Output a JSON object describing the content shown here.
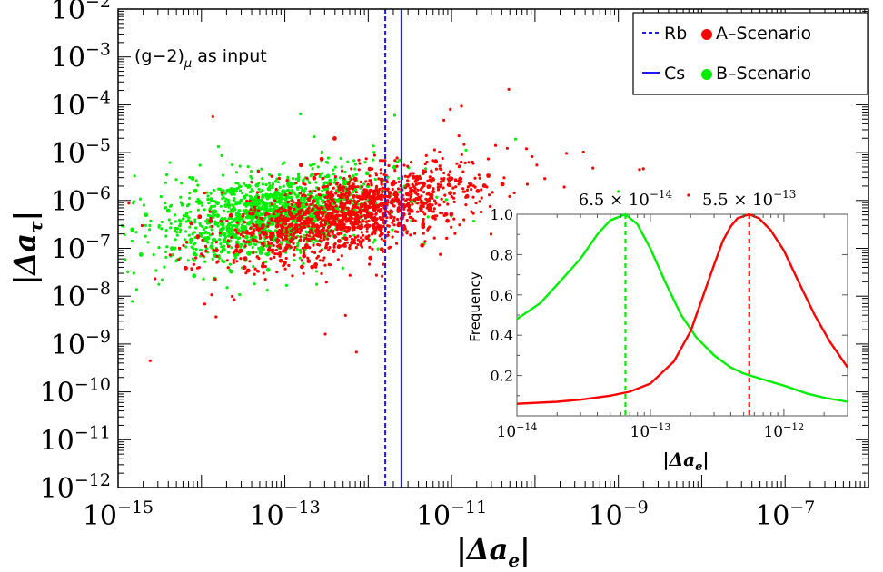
{
  "colors": {
    "a_scenario": "#ff0000",
    "b_scenario": "#00ee00",
    "rb_line": "#1a1aff",
    "cs_line": "#1a1aff",
    "axes": "#000000"
  },
  "chart_data": [
    {
      "type": "scatter",
      "x_scale": "log",
      "y_scale": "log",
      "xlabel": "|Δa_e|",
      "ylabel": "|Δa_τ|",
      "xlim": [
        1e-15,
        1e-06
      ],
      "ylim": [
        1e-12,
        0.01
      ],
      "x_ticks": [
        {
          "base": "10",
          "exp": "−15",
          "value": 1e-15
        },
        {
          "base": "10",
          "exp": "−13",
          "value": 1e-13
        },
        {
          "base": "10",
          "exp": "−11",
          "value": 1e-11
        },
        {
          "base": "10",
          "exp": "−9",
          "value": 1e-09
        },
        {
          "base": "10",
          "exp": "−7",
          "value": 1e-07
        }
      ],
      "y_ticks": [
        {
          "base": "10",
          "exp": "−12",
          "value": 1e-12
        },
        {
          "base": "10",
          "exp": "−11",
          "value": 1e-11
        },
        {
          "base": "10",
          "exp": "−10",
          "value": 1e-10
        },
        {
          "base": "10",
          "exp": "−9",
          "value": 1e-09
        },
        {
          "base": "10",
          "exp": "−8",
          "value": 1e-08
        },
        {
          "base": "10",
          "exp": "−7",
          "value": 1e-07
        },
        {
          "base": "10",
          "exp": "−6",
          "value": 1e-06
        },
        {
          "base": "10",
          "exp": "−5",
          "value": 1e-05
        },
        {
          "base": "10",
          "exp": "−4",
          "value": 0.0001
        },
        {
          "base": "10",
          "exp": "−3",
          "value": 0.001
        },
        {
          "base": "10",
          "exp": "−2",
          "value": 0.01
        }
      ],
      "annotation": {
        "text": "(g−2)",
        "sub": "μ",
        "rest": " as input"
      },
      "legend": {
        "placement": "top-right",
        "items": [
          {
            "label": "Rb",
            "marker": "dashed-line"
          },
          {
            "label": "A–Scenario",
            "marker": "dot"
          },
          {
            "label": "Cs",
            "marker": "solid-line"
          },
          {
            "label": "B–Scenario",
            "marker": "dot"
          }
        ]
      },
      "vertical_lines": [
        {
          "name": "Rb",
          "x": 1.6e-12,
          "style": "dashed"
        },
        {
          "name": "Cs",
          "x": 2.5e-12,
          "style": "solid"
        }
      ],
      "series": [
        {
          "name": "A–Scenario",
          "cluster": {
            "center_x": 5.5e-13,
            "center_y": 5e-07
          }
        },
        {
          "name": "B–Scenario",
          "cluster": {
            "center_x": 6.5e-14,
            "center_y": 5e-07
          }
        }
      ]
    },
    {
      "type": "line",
      "x_scale": "log",
      "xlim": [
        1e-14,
        3e-12
      ],
      "ylim": [
        0,
        1
      ],
      "ylabel": "Frequency",
      "xlabel": "|Δa_e|",
      "x_ticks": [
        {
          "base": "10",
          "exp": "−14",
          "value": 1e-14
        },
        {
          "base": "10",
          "exp": "−13",
          "value": 1e-13
        },
        {
          "base": "10",
          "exp": "−12",
          "value": 1e-12
        }
      ],
      "y_ticks": [
        "0.2",
        "0.4",
        "0.6",
        "0.8",
        "1.0"
      ],
      "peak_labels": [
        {
          "text": "6.5 × 10",
          "exp": "−14",
          "x": 6.5e-14
        },
        {
          "text": "5.5 × 10",
          "exp": "−13",
          "x": 5.5e-13
        }
      ],
      "series": [
        {
          "name": "B–Scenario",
          "peak_x": 6.5e-14,
          "x": [
            1e-14,
            1.5e-14,
            2e-14,
            3e-14,
            4e-14,
            5e-14,
            6.5e-14,
            8e-14,
            1e-13,
            1.3e-13,
            1.7e-13,
            2.2e-13,
            3e-13,
            4e-13,
            5e-13,
            7e-13,
            1e-12,
            1.5e-12,
            2e-12,
            3e-12
          ],
          "values": [
            0.48,
            0.56,
            0.65,
            0.78,
            0.9,
            0.97,
            1.0,
            0.95,
            0.83,
            0.66,
            0.5,
            0.39,
            0.3,
            0.24,
            0.21,
            0.18,
            0.15,
            0.11,
            0.09,
            0.07
          ]
        },
        {
          "name": "A–Scenario",
          "peak_x": 5.5e-13,
          "x": [
            1e-14,
            2e-14,
            3e-14,
            5e-14,
            7e-14,
            1e-13,
            1.5e-13,
            2e-13,
            2.5e-13,
            3e-13,
            3.5e-13,
            4e-13,
            4.5e-13,
            5.5e-13,
            6.5e-13,
            8e-13,
            1e-12,
            1.3e-12,
            1.7e-12,
            2.2e-12,
            3e-12
          ],
          "values": [
            0.06,
            0.07,
            0.08,
            0.1,
            0.12,
            0.16,
            0.27,
            0.42,
            0.6,
            0.75,
            0.87,
            0.94,
            0.98,
            1.0,
            0.98,
            0.92,
            0.82,
            0.66,
            0.5,
            0.37,
            0.24
          ]
        }
      ]
    }
  ]
}
